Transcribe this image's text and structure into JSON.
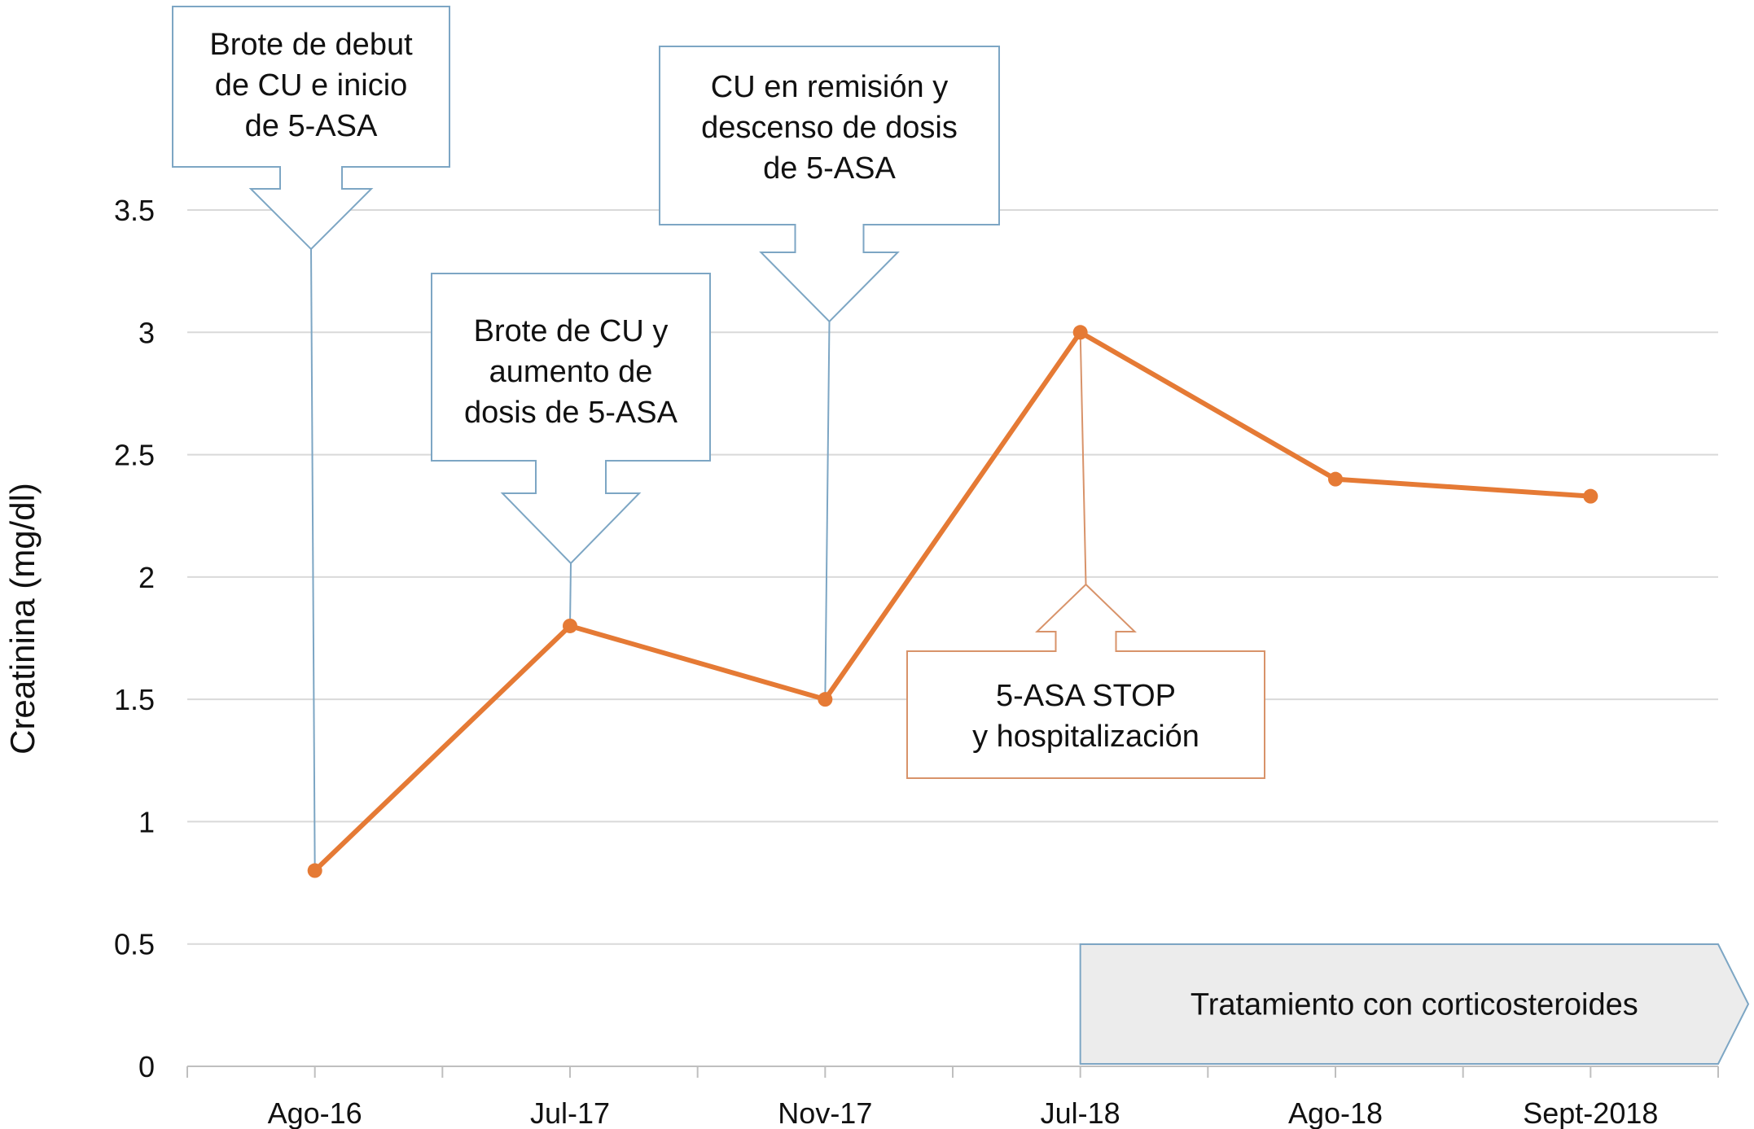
{
  "chart_data": {
    "type": "line",
    "title": "",
    "xlabel": "",
    "ylabel": "Creatinina (mg/dl)",
    "categories": [
      "Ago-16",
      "Jul-17",
      "Nov-17",
      "Jul-18",
      "Ago-18",
      "Sept-2018"
    ],
    "series": [
      {
        "values": [
          0.8,
          1.8,
          1.5,
          3.0,
          2.4,
          2.33
        ]
      }
    ],
    "ylim": [
      0,
      3.5
    ],
    "yticks": [
      "0",
      "0.5",
      "1",
      "1.5",
      "2",
      "2.5",
      "3",
      "3.5"
    ],
    "grid": true,
    "line_color": "#e57a35",
    "callout_color_blue": "#7da6c4",
    "callout_color_orange": "#d8936a",
    "annotations": [
      {
        "category": "Ago-16",
        "lines": [
          "Brote de debut",
          "de CU e inicio",
          "de 5-ASA"
        ]
      },
      {
        "category": "Jul-17",
        "lines": [
          "Brote de CU y",
          "aumento de",
          "dosis de 5-ASA"
        ]
      },
      {
        "category": "Nov-17",
        "lines": [
          "CU en remisión y",
          "descenso de dosis",
          "de 5-ASA"
        ]
      },
      {
        "category": "Jul-18",
        "lines": [
          "5-ASA STOP",
          "y hospitalización"
        ]
      }
    ],
    "treatment_bar": {
      "start": "Jul-18",
      "label": "Tratamiento con corticosteroides"
    }
  }
}
